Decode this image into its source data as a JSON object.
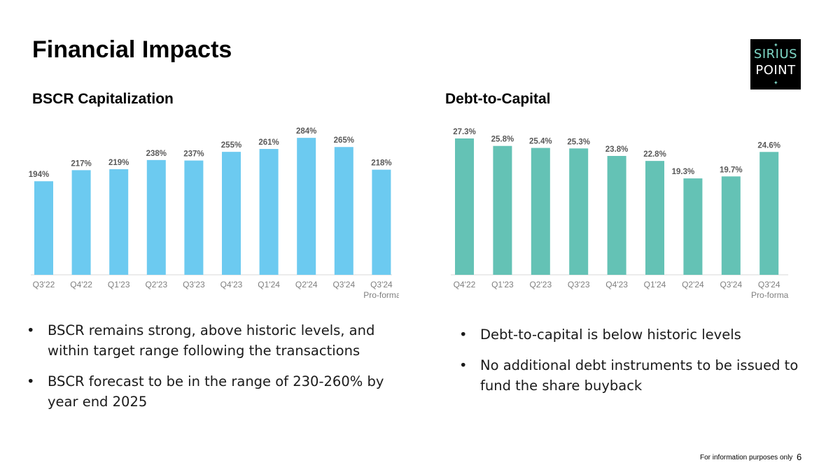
{
  "title": "Financial Impacts",
  "logo": {
    "line1": "SIRIUS",
    "line2": "POINT",
    "star": "✦"
  },
  "colors": {
    "bscr_bar": "#6ccaf0",
    "debt_bar": "#64c2b5",
    "axis": "#d9d9d9"
  },
  "chart_data": [
    {
      "type": "bar",
      "title": "BSCR Capitalization",
      "categories": [
        "Q3'22",
        "Q4'22",
        "Q1'23",
        "Q2'23",
        "Q3'23",
        "Q4'23",
        "Q1'24",
        "Q2'24",
        "Q3'24",
        "Q3'24"
      ],
      "sublabels": [
        "",
        "",
        "",
        "",
        "",
        "",
        "",
        "",
        "",
        "Pro-forma"
      ],
      "values": [
        194,
        217,
        219,
        238,
        237,
        255,
        261,
        284,
        265,
        218
      ],
      "labels": [
        "194%",
        "217%",
        "219%",
        "238%",
        "237%",
        "255%",
        "261%",
        "284%",
        "265%",
        "218%"
      ],
      "unit": "%",
      "ylim": [
        0,
        290
      ],
      "xlabel": "",
      "ylabel": "",
      "grid": false,
      "legend": "none"
    },
    {
      "type": "bar",
      "title": "Debt-to-Capital",
      "categories": [
        "Q4'22",
        "Q1'23",
        "Q2'23",
        "Q3'23",
        "Q4'23",
        "Q1'24",
        "Q2'24",
        "Q3'24",
        "Q3'24"
      ],
      "sublabels": [
        "",
        "",
        "",
        "",
        "",
        "",
        "",
        "",
        "Pro-forma"
      ],
      "values": [
        27.3,
        25.8,
        25.4,
        25.3,
        23.8,
        22.8,
        19.3,
        19.7,
        24.6
      ],
      "labels": [
        "27.3%",
        "25.8%",
        "25.4%",
        "25.3%",
        "23.8%",
        "22.8%",
        "19.3%",
        "19.7%",
        "24.6%"
      ],
      "unit": "%",
      "ylim": [
        0,
        28
      ],
      "xlabel": "",
      "ylabel": "",
      "grid": false,
      "legend": "none"
    }
  ],
  "left_bullets": [
    "BSCR remains strong, above historic levels, and within target range following the transactions",
    "BSCR forecast to be in the range of 230-260% by year end 2025"
  ],
  "right_bullets": [
    "Debt-to-capital is below historic levels",
    "No additional debt instruments to be issued to fund the share buyback"
  ],
  "bullet_char": "•",
  "footer": {
    "note": "For information purposes only",
    "page": "6"
  }
}
